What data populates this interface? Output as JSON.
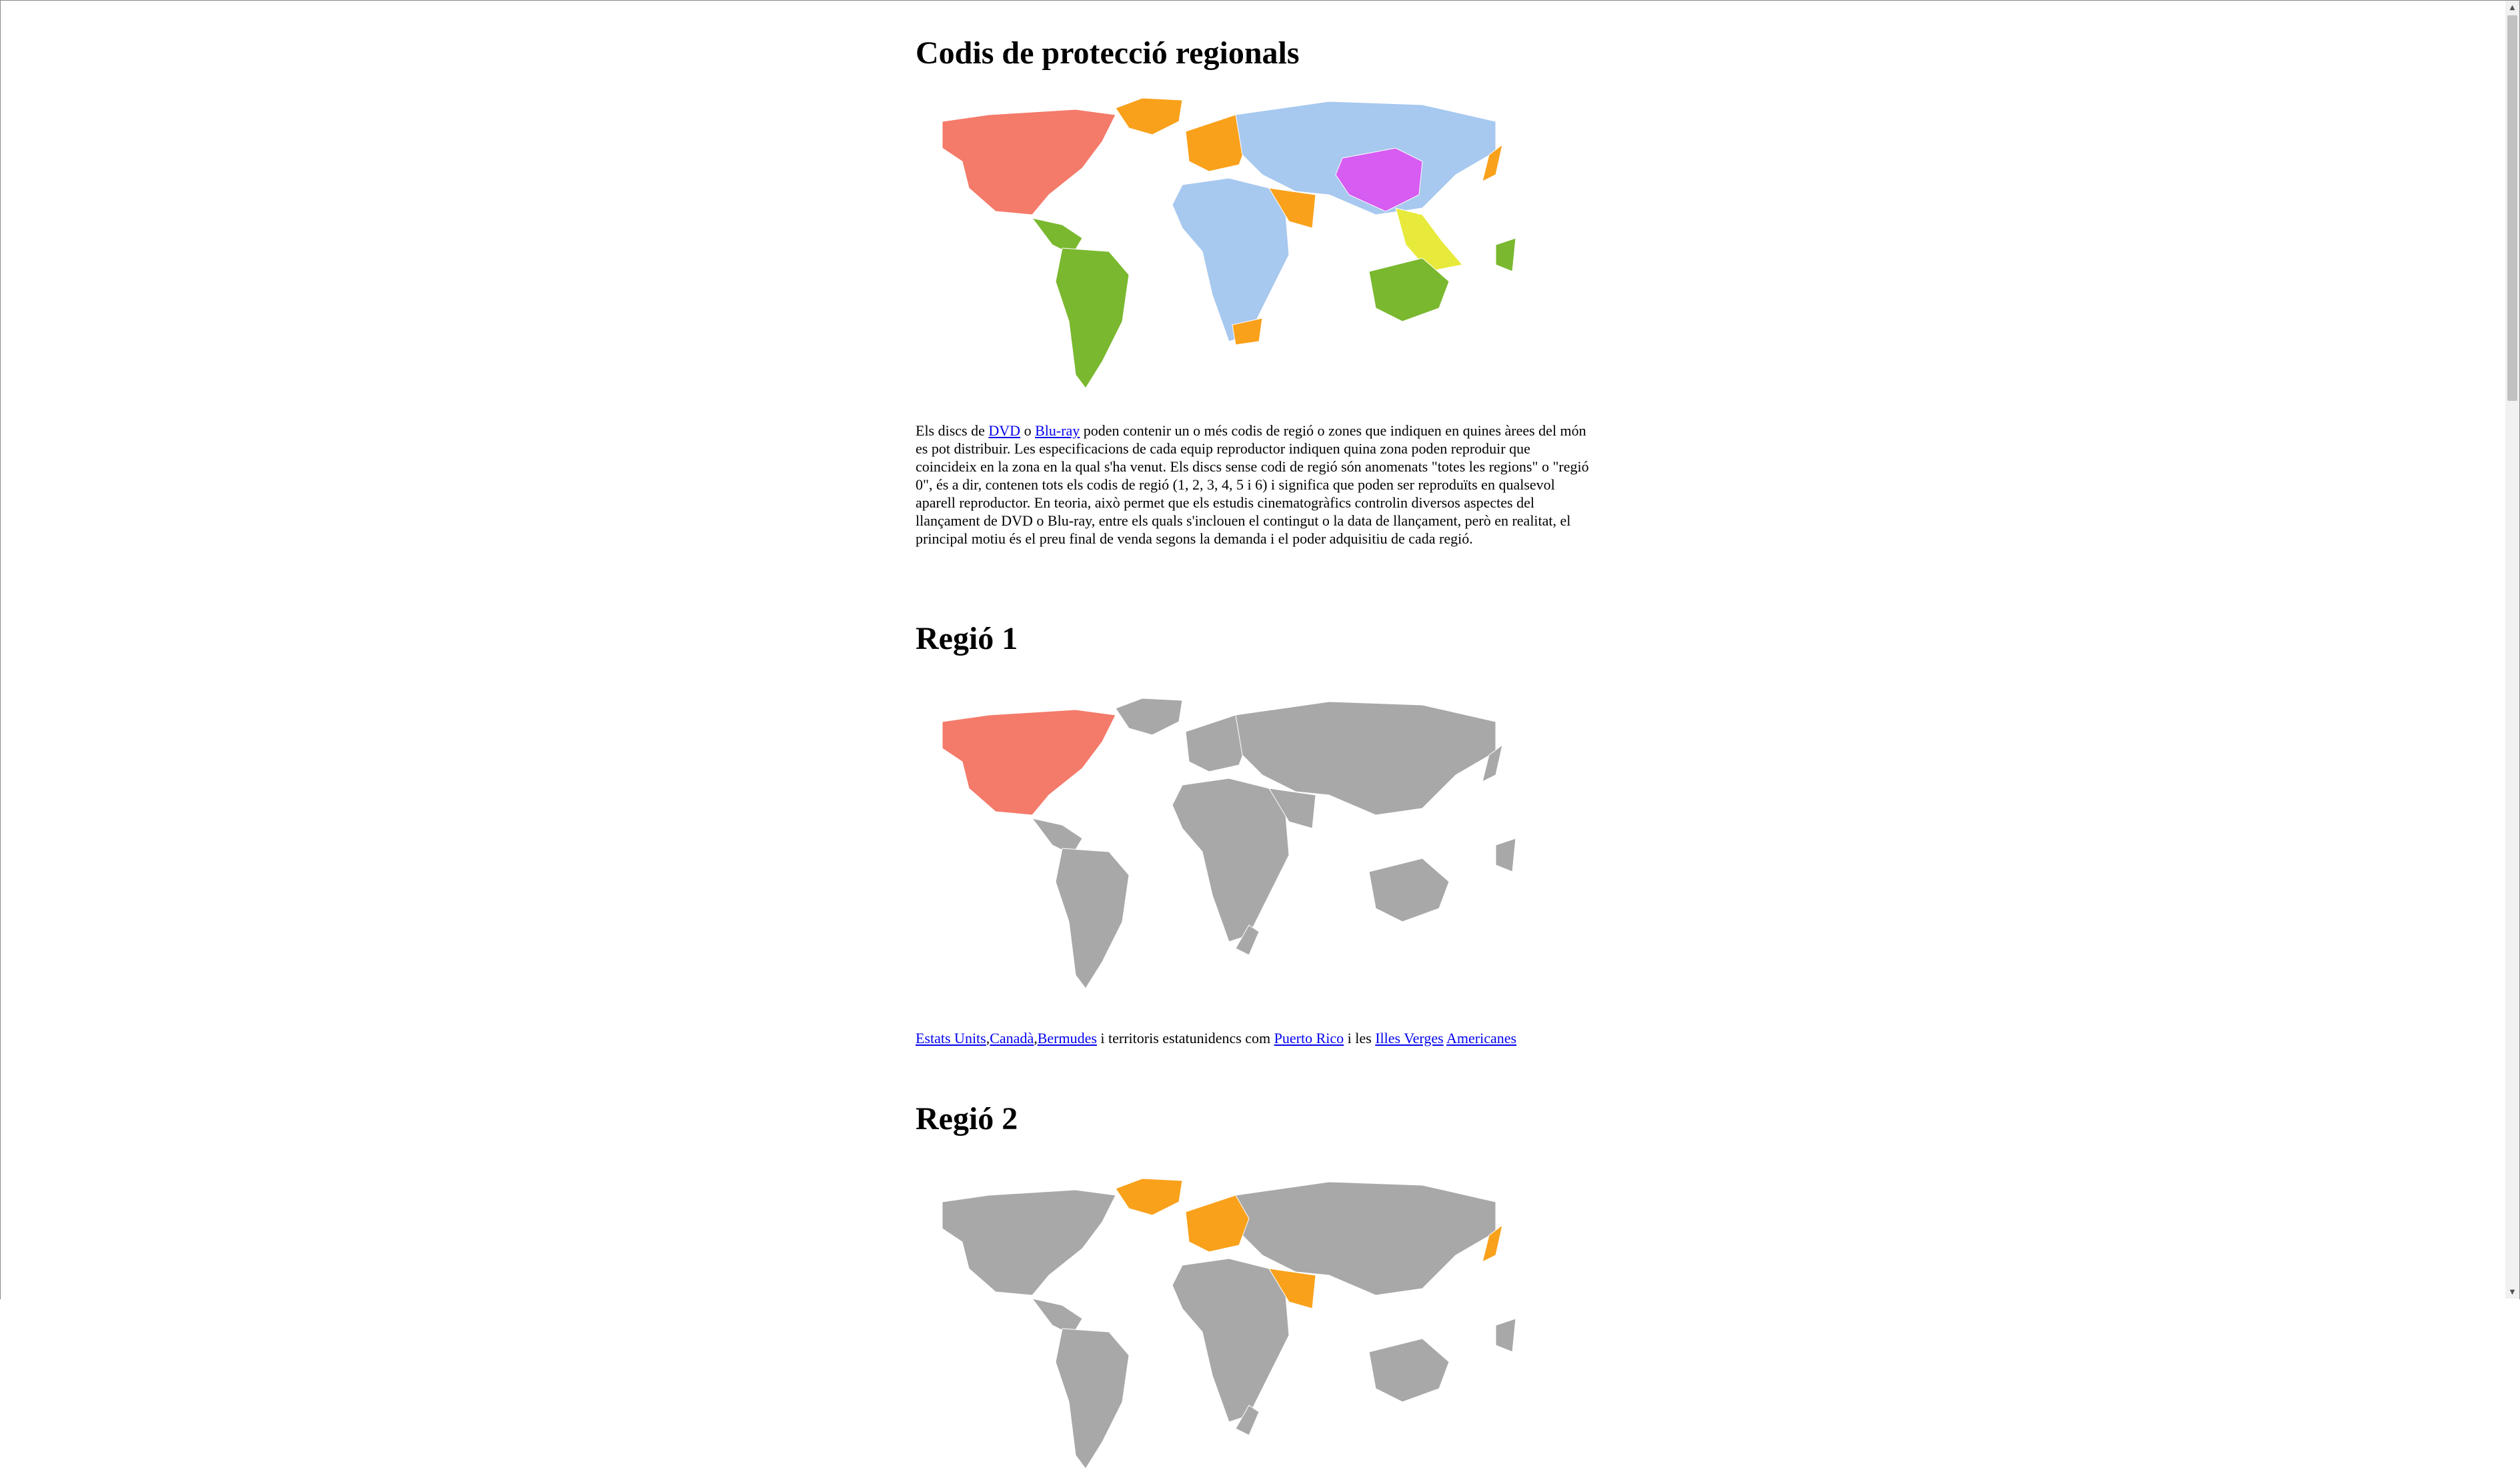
{
  "page": {
    "title": "Codis de protecció regionals",
    "intro": {
      "t1": "Els discs de ",
      "link_dvd": "DVD",
      "t2": " o ",
      "link_bluray": "Blu-ray",
      "t3": " poden contenir un o més codis de regió o zones que indiquen en quines àrees del món es pot distribuir. Les especificacions de cada equip reproductor indiquen quina zona poden reproduir que coincideix en la zona en la qual s'ha venut. Els discs sense codi de regió són anomenats \"totes les regions\" o \"regió 0\", és a dir, contenen tots els codis de regió (1, 2, 3, 4, 5 i 6) i significa que poden ser reproduïts en qualsevol aparell reproductor. En teoria, això permet que els estudis cinematogràfics controlin diversos aspectes del llançament de DVD o Blu-ray, entre els quals s'inclouen el contingut o la data de llançament, però en realitat, el principal motiu és el preu final de venda segons la demanda i el poder adquisitiu de cada regió."
    }
  },
  "regions": [
    {
      "heading": "Regió 1",
      "caption": {
        "link_us": "Estats Units",
        "sep1": ",",
        "link_canada": "Canadà",
        "sep2": ",",
        "link_bermudes": "Bermudes",
        "t1": " i territoris estatunidencs com ",
        "link_pr": "Puerto Rico",
        "t2": " i les ",
        "link_illes": "Illes Verges",
        "t3": " ",
        "link_americanes": "Americanes"
      }
    },
    {
      "heading": "Regió 2"
    }
  ],
  "colors": {
    "region1": "#f47a6a",
    "region2": "#f9a11b",
    "region3": "#e8ea3b",
    "region4": "#7ab82f",
    "region5": "#a7c8ef",
    "region6": "#d65cf2",
    "inactive": "#a8a8a8"
  }
}
